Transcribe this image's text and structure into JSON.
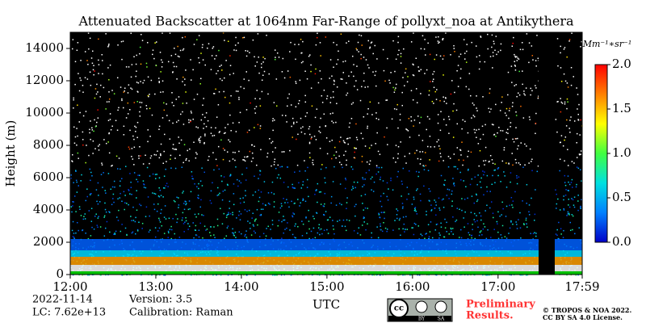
{
  "chart_data": {
    "type": "heatmap",
    "title": "Attenuated Backscatter at 1064nm Far-Range of pollyxt_noa at Antikythera",
    "ylabel": "Height (m)",
    "xlabel": "UTC",
    "ylim": [
      0,
      15000
    ],
    "yticks": [
      0,
      2000,
      4000,
      6000,
      8000,
      10000,
      12000,
      14000
    ],
    "xlim": [
      12,
      17.9833
    ],
    "xticks": [
      {
        "value": 12,
        "label": "12:00"
      },
      {
        "value": 13,
        "label": "13:00"
      },
      {
        "value": 14,
        "label": "14:00"
      },
      {
        "value": 15,
        "label": "15:00"
      },
      {
        "value": 16,
        "label": "16:00"
      },
      {
        "value": 17,
        "label": "17:00"
      },
      {
        "value": 17.9833,
        "label": "17:59"
      }
    ],
    "colorbar_label": "Mm⁻¹∗sr⁻¹",
    "clim": [
      0,
      2
    ],
    "cticks": [
      {
        "value": 0,
        "label": "0.0"
      },
      {
        "value": 0.5,
        "label": "0.5"
      },
      {
        "value": 1,
        "label": "1.0"
      },
      {
        "value": 1.5,
        "label": "1.5"
      },
      {
        "value": 2,
        "label": "2.0"
      }
    ],
    "colormap": [
      "#0000c8",
      "#0080ff",
      "#00e0e0",
      "#40ff40",
      "#ffff00",
      "#ff8000",
      "#ff0000"
    ],
    "info": {
      "date": "2022-11-14",
      "lc": "LC: 7.62e+13",
      "version": "Version: 3.5",
      "calibration": "Calibration: Raman"
    },
    "license_badge": [
      "cc",
      "BY",
      "SA"
    ],
    "preliminary": [
      "Preliminary",
      "Results."
    ],
    "copyright": [
      "© TROPOS & NOA 2022.",
      "CC BY SA 4.0 License."
    ]
  }
}
